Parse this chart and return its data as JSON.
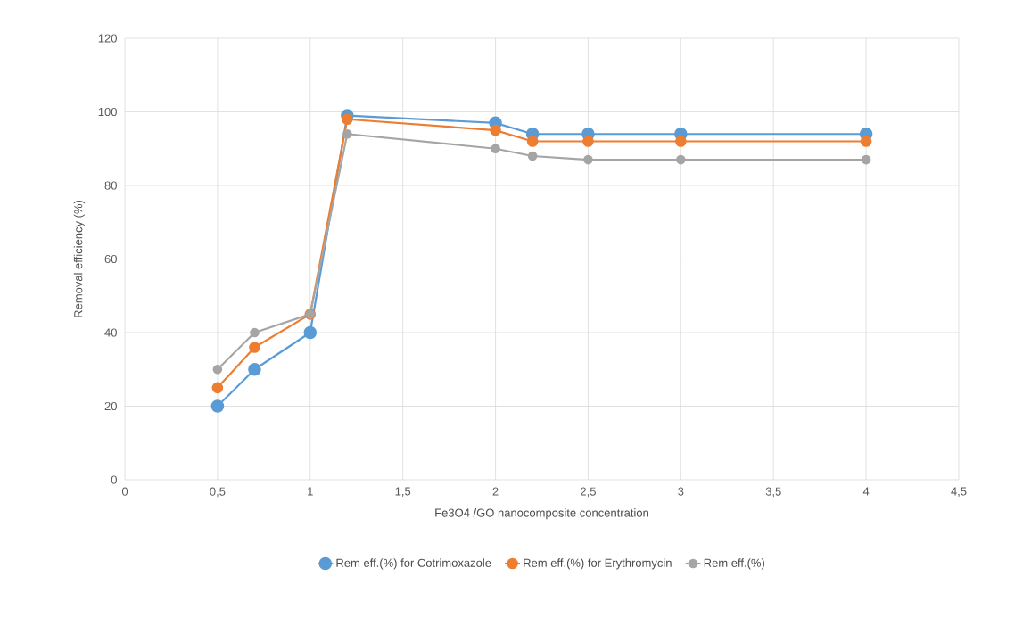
{
  "chart_data": {
    "type": "line",
    "xlabel": "Fe3O4 /GO nanocomposite concentration",
    "ylabel": "Removal efficiency (%)",
    "x": [
      0.5,
      0.7,
      1,
      1.2,
      2,
      2.2,
      2.5,
      3,
      4
    ],
    "series": [
      {
        "name": "Rem eff.(%) for Cotrimoxazole",
        "color": "#5b9bd5",
        "values": [
          20,
          30,
          40,
          99,
          97,
          94,
          94,
          94,
          94
        ]
      },
      {
        "name": "Rem eff.(%) for Erythromycin",
        "color": "#ed7d31",
        "values": [
          25,
          36,
          45,
          98,
          95,
          92,
          92,
          92,
          92
        ]
      },
      {
        "name": "Rem eff.(%)",
        "color": "#a5a5a5",
        "values": [
          30,
          40,
          45,
          94,
          90,
          88,
          87,
          87,
          87
        ]
      }
    ],
    "xlim": [
      0,
      4.5
    ],
    "ylim": [
      0,
      120
    ],
    "xticks": [
      0,
      {
        "value": 0.5,
        "label": "0,5"
      },
      1,
      {
        "value": 1.5,
        "label": "1,5"
      },
      2,
      {
        "value": 2.5,
        "label": "2,5"
      },
      3,
      {
        "value": 3.5,
        "label": "3,5"
      },
      4,
      {
        "value": 4.5,
        "label": "4,5"
      }
    ],
    "yticks": [
      0,
      20,
      40,
      60,
      80,
      100,
      120
    ],
    "grid": true,
    "legend": "bottom",
    "marker": "circle",
    "line_style": "solid"
  }
}
